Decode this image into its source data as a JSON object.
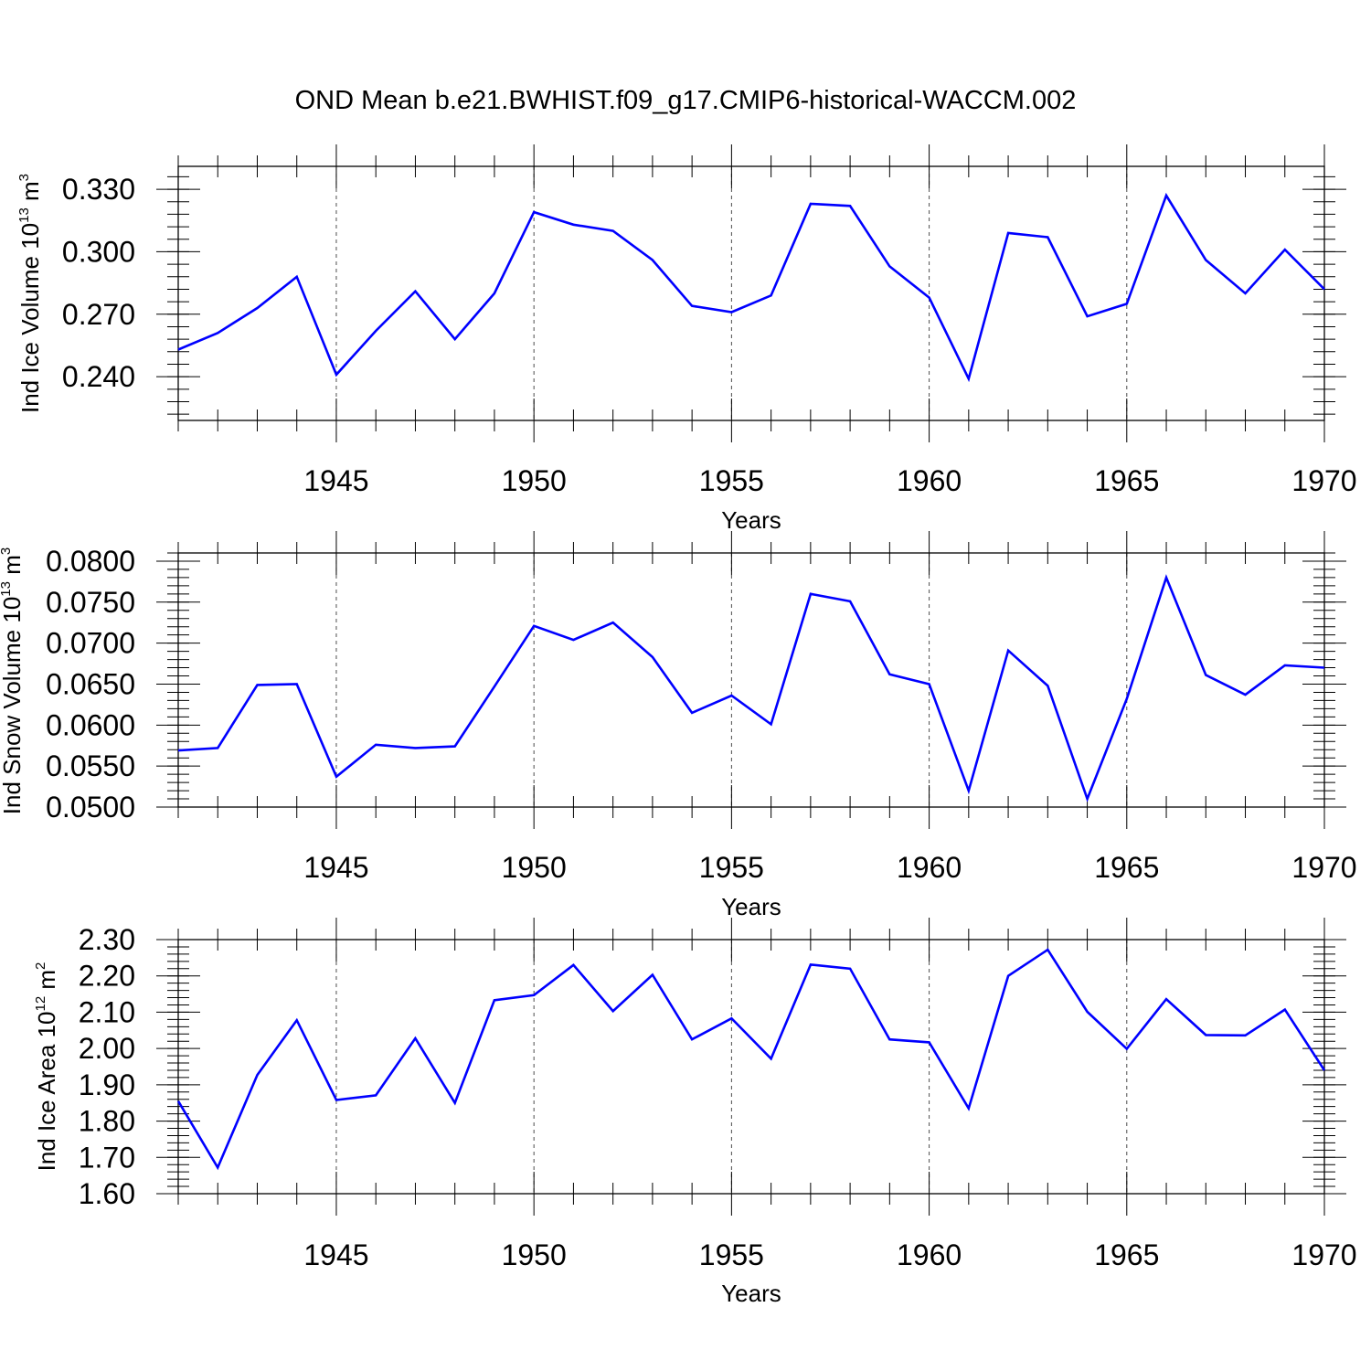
{
  "title": "OND Mean b.e21.BWHIST.f09_g17.CMIP6-historical-WACCM.002",
  "colors": {
    "line": "#0000ff",
    "axis": "#000000",
    "grid": "#000000"
  },
  "chart_data": [
    {
      "type": "line",
      "xlabel": "Years",
      "ylabel": {
        "prefix": "Ind Ice Volume 10",
        "exp": "13",
        "unit": " m",
        "unit_exp": "3"
      },
      "xlim": [
        1941,
        1970
      ],
      "ylim": [
        0.219,
        0.341
      ],
      "xticks": [
        1945,
        1950,
        1955,
        1960,
        1965,
        1970
      ],
      "xtick_labels": [
        "1945",
        "1950",
        "1955",
        "1960",
        "1965",
        "1970"
      ],
      "yticks": [
        0.24,
        0.27,
        0.3,
        0.33
      ],
      "ytick_labels": [
        "0.240",
        "0.270",
        "0.300",
        "0.330"
      ],
      "yminor_step": 0.006,
      "grid": "x-dashed",
      "x": [
        1941,
        1942,
        1943,
        1944,
        1945,
        1946,
        1947,
        1948,
        1949,
        1950,
        1951,
        1952,
        1953,
        1954,
        1955,
        1956,
        1957,
        1958,
        1959,
        1960,
        1961,
        1962,
        1963,
        1964,
        1965,
        1966,
        1967,
        1968,
        1969,
        1970
      ],
      "values": [
        0.253,
        0.261,
        0.273,
        0.288,
        0.241,
        0.262,
        0.281,
        0.258,
        0.28,
        0.319,
        0.313,
        0.31,
        0.296,
        0.274,
        0.271,
        0.279,
        0.323,
        0.322,
        0.293,
        0.278,
        0.239,
        0.309,
        0.307,
        0.269,
        0.275,
        0.327,
        0.296,
        0.28,
        0.301,
        0.282
      ]
    },
    {
      "type": "line",
      "xlabel": "Years",
      "ylabel": {
        "prefix": "Ind Snow Volume 10",
        "exp": "13",
        "unit": " m",
        "unit_exp": "3"
      },
      "xlim": [
        1941,
        1970
      ],
      "ylim": [
        0.05,
        0.081
      ],
      "xticks": [
        1945,
        1950,
        1955,
        1960,
        1965,
        1970
      ],
      "xtick_labels": [
        "1945",
        "1950",
        "1955",
        "1960",
        "1965",
        "1970"
      ],
      "yticks": [
        0.05,
        0.055,
        0.06,
        0.065,
        0.07,
        0.075,
        0.08
      ],
      "ytick_labels": [
        "0.0500",
        "0.0550",
        "0.0600",
        "0.0650",
        "0.0700",
        "0.0750",
        "0.0800"
      ],
      "yminor_step": 0.001,
      "grid": "x-dashed",
      "x": [
        1941,
        1942,
        1943,
        1944,
        1945,
        1946,
        1947,
        1948,
        1949,
        1950,
        1951,
        1952,
        1953,
        1954,
        1955,
        1956,
        1957,
        1958,
        1959,
        1960,
        1961,
        1962,
        1963,
        1964,
        1965,
        1966,
        1967,
        1968,
        1969,
        1970
      ],
      "values": [
        0.0569,
        0.0572,
        0.0649,
        0.065,
        0.0537,
        0.0576,
        0.0572,
        0.0574,
        0.0647,
        0.0721,
        0.0704,
        0.0725,
        0.0683,
        0.0615,
        0.0636,
        0.0601,
        0.076,
        0.0751,
        0.0662,
        0.065,
        0.052,
        0.0691,
        0.0648,
        0.051,
        0.0632,
        0.078,
        0.0661,
        0.0637,
        0.0673,
        0.067
      ]
    },
    {
      "type": "line",
      "xlabel": "Years",
      "ylabel": {
        "prefix": "Ind Ice Area 10",
        "exp": "12",
        "unit": " m",
        "unit_exp": "2"
      },
      "xlim": [
        1941,
        1970
      ],
      "ylim": [
        1.6,
        2.3
      ],
      "xticks": [
        1945,
        1950,
        1955,
        1960,
        1965,
        1970
      ],
      "xtick_labels": [
        "1945",
        "1950",
        "1955",
        "1960",
        "1965",
        "1970"
      ],
      "yticks": [
        1.6,
        1.7,
        1.8,
        1.9,
        2.0,
        2.1,
        2.2,
        2.3
      ],
      "ytick_labels": [
        "1.60",
        "1.70",
        "1.80",
        "1.90",
        "2.00",
        "2.10",
        "2.20",
        "2.30"
      ],
      "yminor_step": 0.02,
      "grid": "x-dashed",
      "x": [
        1941,
        1942,
        1943,
        1944,
        1945,
        1946,
        1947,
        1948,
        1949,
        1950,
        1951,
        1952,
        1953,
        1954,
        1955,
        1956,
        1957,
        1958,
        1959,
        1960,
        1961,
        1962,
        1963,
        1964,
        1965,
        1966,
        1967,
        1968,
        1969,
        1970
      ],
      "values": [
        1.855,
        1.672,
        1.927,
        2.078,
        1.858,
        1.871,
        2.028,
        1.85,
        2.133,
        2.147,
        2.23,
        2.103,
        2.203,
        2.025,
        2.083,
        1.972,
        2.231,
        2.22,
        2.025,
        2.017,
        1.835,
        2.2,
        2.272,
        2.101,
        1.999,
        2.136,
        2.037,
        2.036,
        2.107,
        1.94
      ]
    }
  ]
}
